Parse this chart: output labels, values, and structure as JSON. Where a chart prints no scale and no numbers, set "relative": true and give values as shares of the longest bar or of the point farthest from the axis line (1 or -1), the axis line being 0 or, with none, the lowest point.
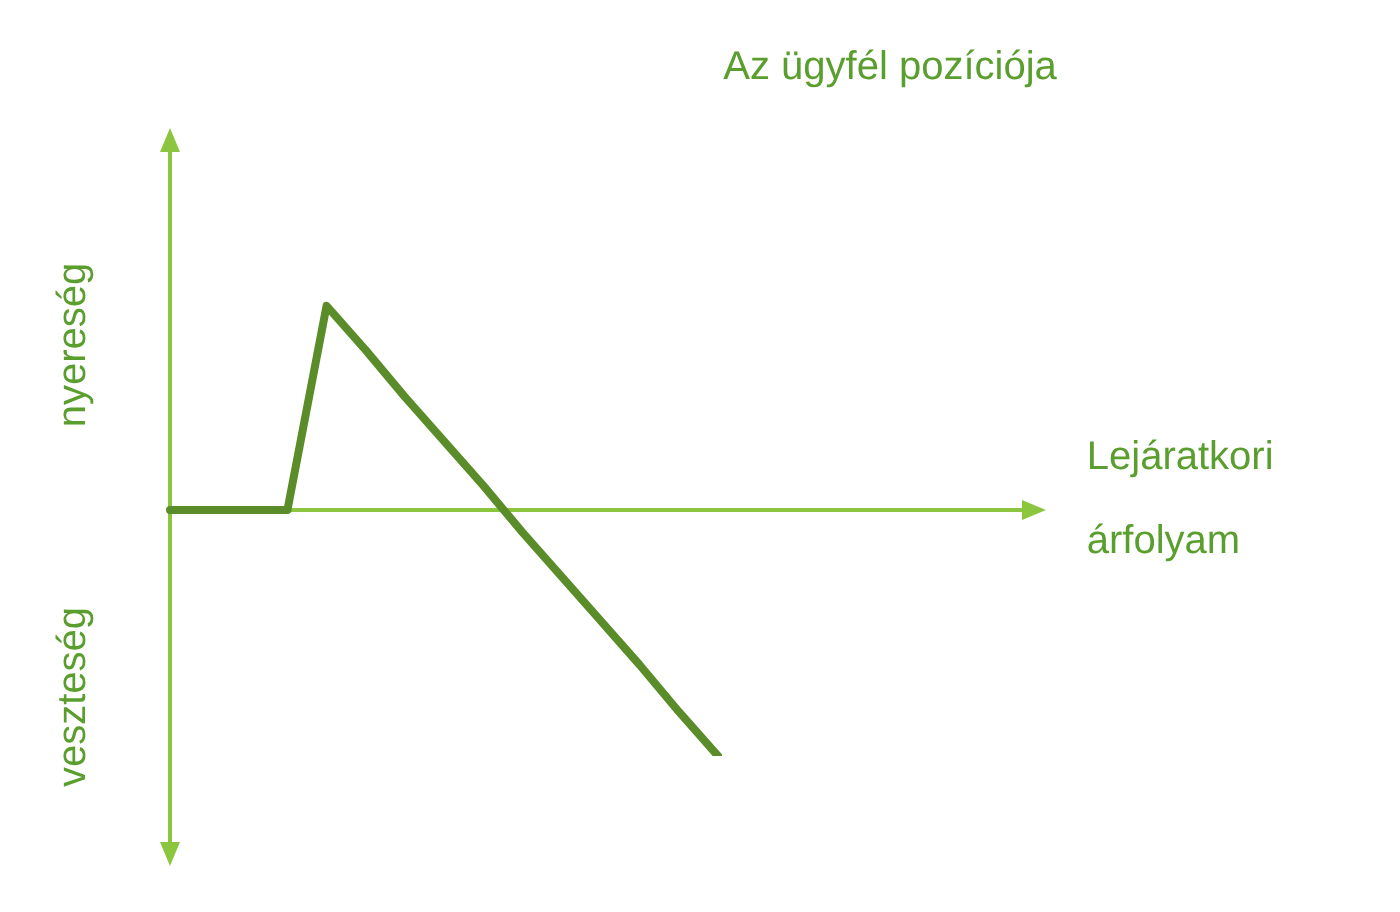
{
  "chart_data": {
    "type": "line",
    "title": "Az ügyfél pozíciója",
    "annotations": [
      "nyereség",
      "veszteség",
      "Lejáratkori árfolyam"
    ],
    "relative": true,
    "categories": [
      null,
      null,
      null,
      null,
      null,
      null,
      null,
      null,
      null,
      null,
      null,
      null,
      null,
      null,
      null
    ],
    "series": [
      {
        "color": "#5b8c2a",
        "values": [
          0,
          0,
          0,
          0,
          0.83,
          0.65,
          0.46,
          0.28,
          0.1,
          -0.09,
          -0.27,
          -0.45,
          -0.63,
          -0.82,
          -1
        ]
      }
    ],
    "ref_lines": [
      {
        "axis": "y",
        "value": 0,
        "color": "#8cc63f"
      }
    ],
    "marker": "none",
    "line_style": "solid"
  }
}
